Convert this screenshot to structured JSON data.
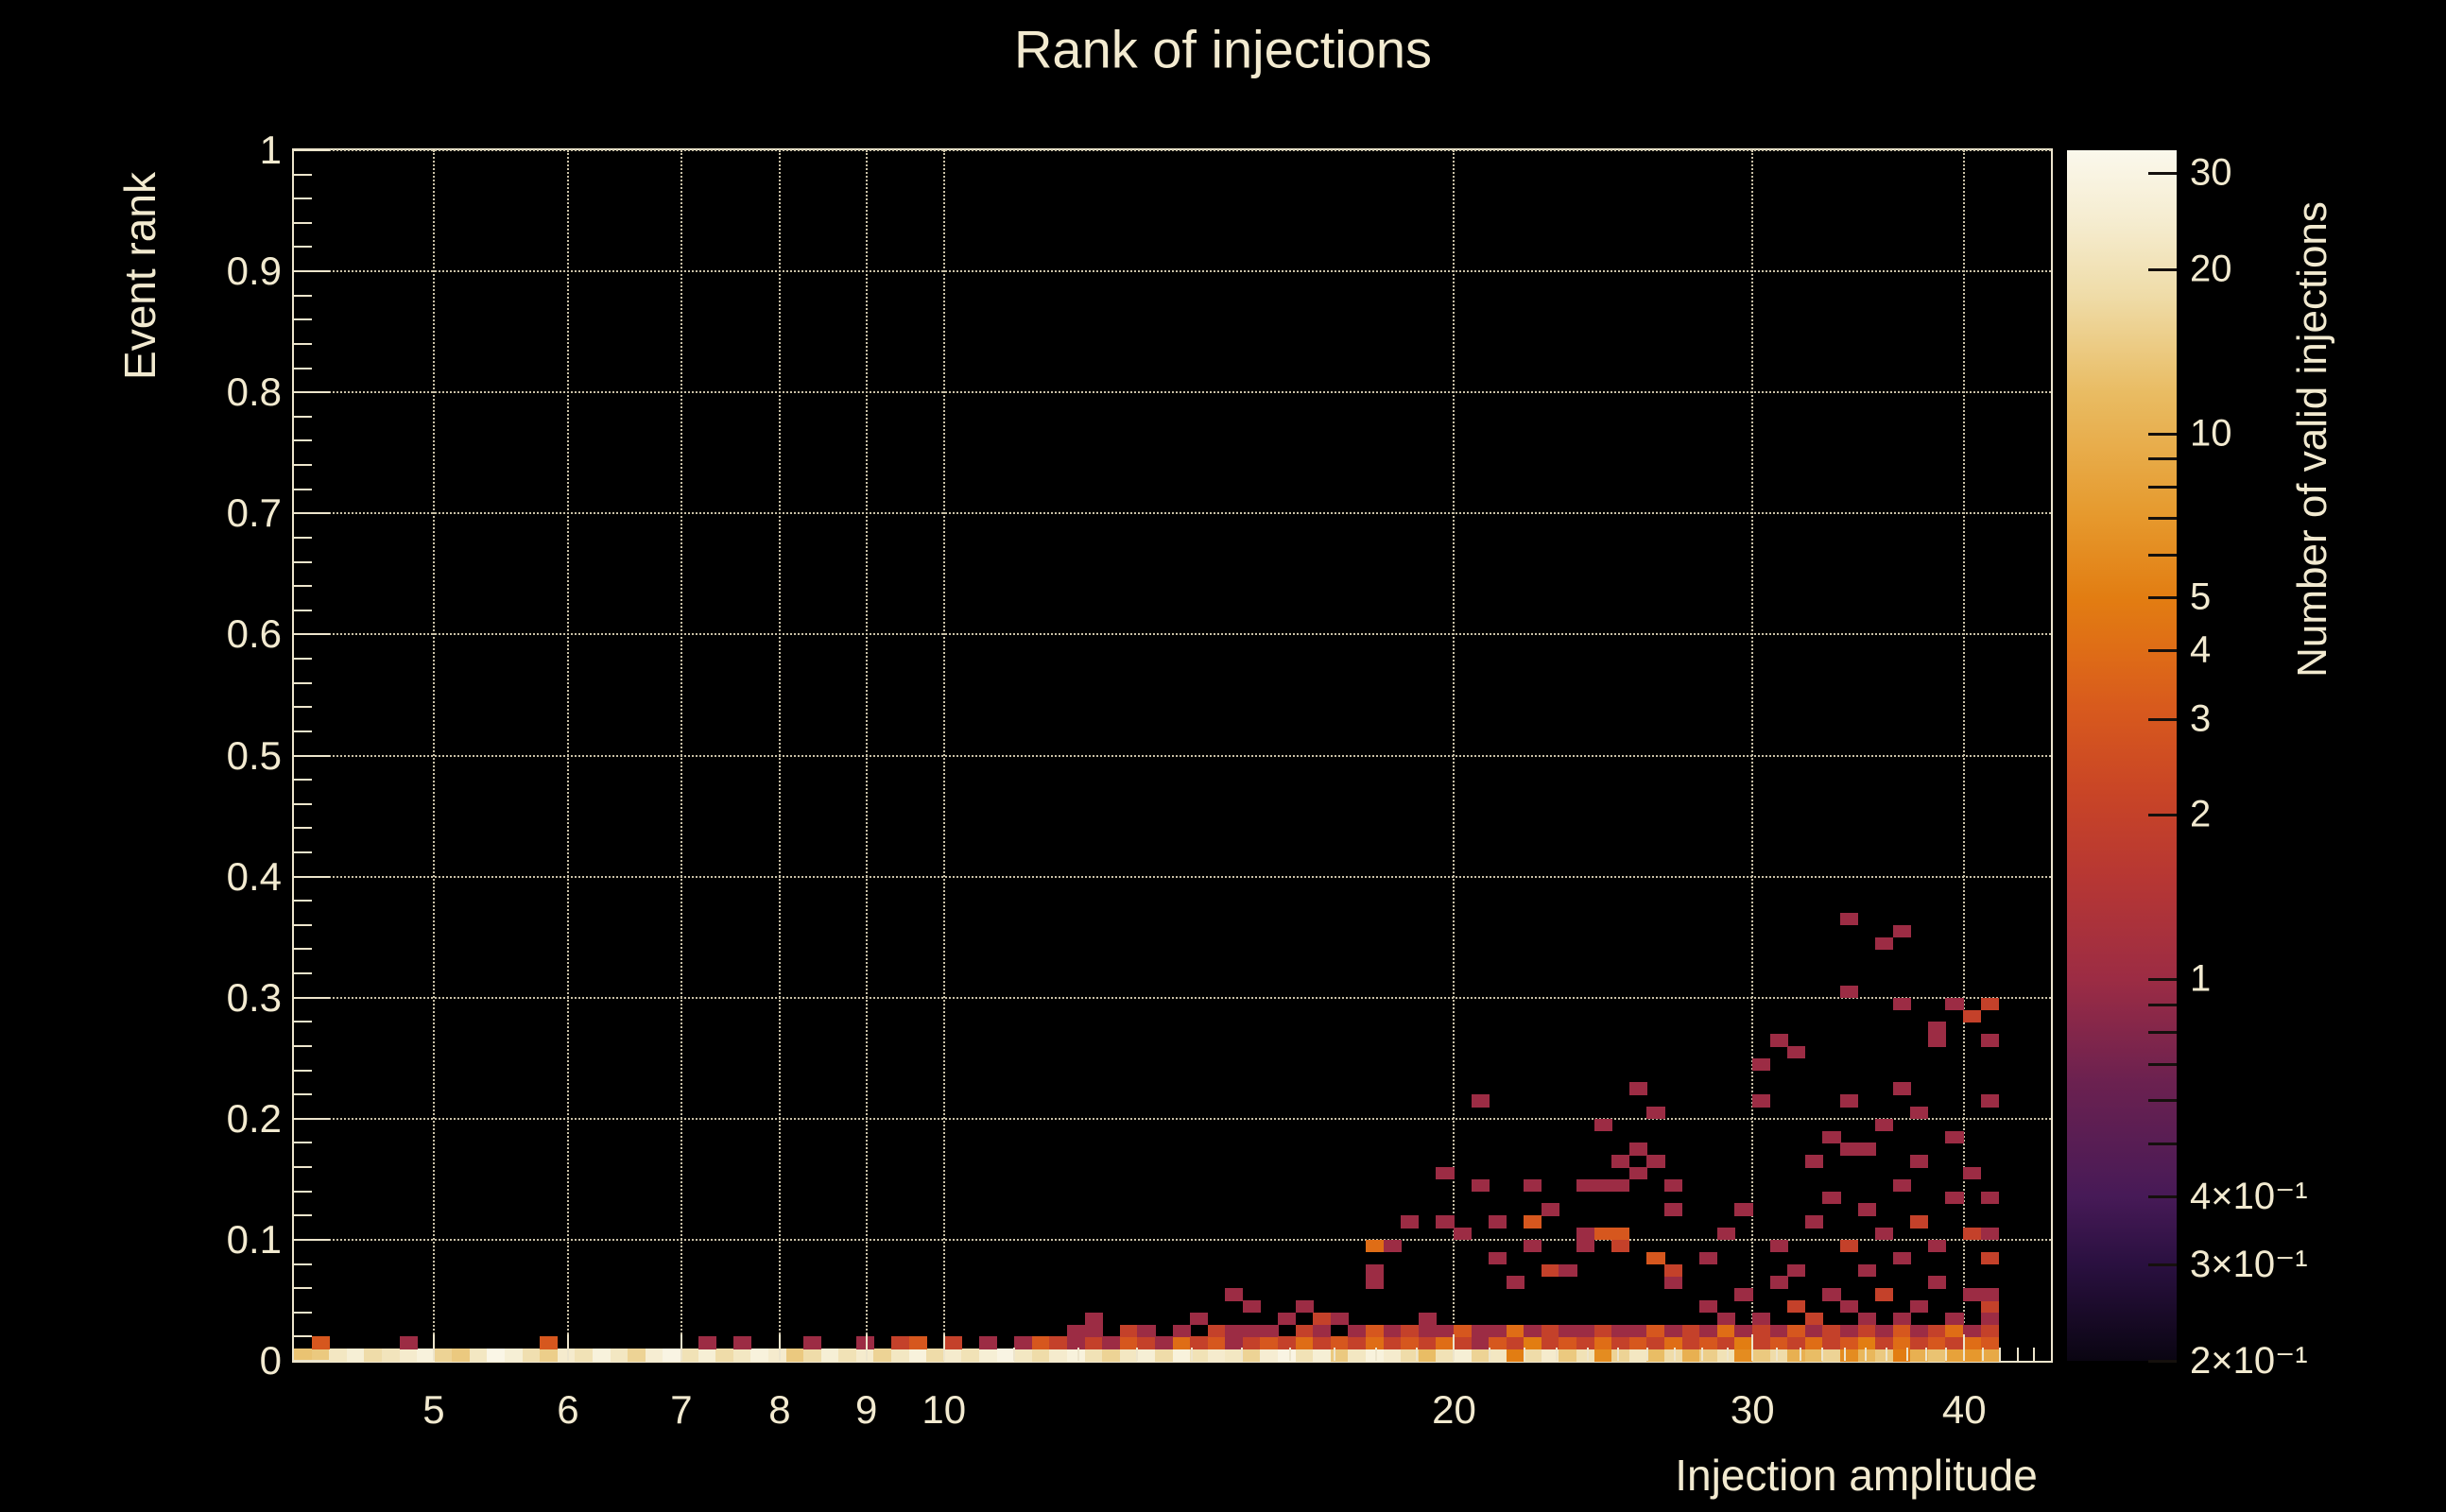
{
  "title": "Rank of injections",
  "colors": {
    "background": "#000000",
    "text": "#F2EAD0",
    "axis": "#EDE5CC",
    "grid": "#C9C0A6",
    "palette_stops": [
      [
        0.0,
        "#0A0512"
      ],
      [
        0.08,
        "#2A1040"
      ],
      [
        0.136,
        "#471A57"
      ],
      [
        0.23,
        "#6B2150"
      ],
      [
        0.315,
        "#9C2C44"
      ],
      [
        0.4,
        "#B73733"
      ],
      [
        0.47,
        "#C94526"
      ],
      [
        0.54,
        "#D85A1D"
      ],
      [
        0.59,
        "#DF6E16"
      ],
      [
        0.63,
        "#E27D12"
      ],
      [
        0.7,
        "#E69A2E"
      ],
      [
        0.8,
        "#E9BC63"
      ],
      [
        0.88,
        "#EFDCA8"
      ],
      [
        0.94,
        "#F5ECCF"
      ],
      [
        1.0,
        "#FBF8EC"
      ]
    ]
  },
  "chart_data": {
    "type": "heatmap",
    "title": "Rank of injections",
    "xlabel": "Injection amplitude",
    "ylabel": "Event rank",
    "zlabel": "Number of valid injections",
    "x_scale": "log",
    "x_range": [
      4.135,
      45.0
    ],
    "x_labeled_ticks": [
      5,
      6,
      7,
      8,
      9,
      10,
      20,
      30,
      40
    ],
    "x_tick_labels": [
      "5",
      "6",
      "7",
      "8",
      "9",
      "10",
      "20",
      "30",
      "40"
    ],
    "y_range": [
      0,
      1
    ],
    "y_tick_step": 0.1,
    "y_tick_labels": [
      "0",
      "0.1",
      "0.2",
      "0.3",
      "0.4",
      "0.5",
      "0.6",
      "0.7",
      "0.8",
      "0.9",
      "1"
    ],
    "grid": "dotted, on labeled ticks both axes",
    "z_scale": "log",
    "z_range": [
      0.2,
      33
    ],
    "z_tick_labels": [
      [
        30,
        "30"
      ],
      [
        20,
        "20"
      ],
      [
        10,
        "10"
      ],
      [
        5,
        "5"
      ],
      [
        4,
        "4"
      ],
      [
        3,
        "3"
      ],
      [
        2,
        "2"
      ],
      [
        1,
        "1"
      ],
      [
        0.4,
        "4×10⁻¹"
      ],
      [
        0.3,
        "3×10⁻¹"
      ],
      [
        0.2,
        "2×10⁻¹"
      ]
    ],
    "n_xbins": 100,
    "n_ybins": 100,
    "note": "bins: xbin i spans 4.135*(45/4.135)^(i/100)..^((i+1)/100); ybin j spans [0.01j,0.01j+0.01); bottom_row_counts[i] = count in ybin 0",
    "bottom_row_counts": [
      13,
      14,
      22,
      26,
      18,
      21,
      24,
      28,
      16,
      14,
      22,
      31,
      26,
      19,
      15,
      24,
      20,
      28,
      22,
      16,
      25,
      30,
      20,
      26,
      18,
      22,
      28,
      24,
      14,
      18,
      26,
      20,
      24,
      16,
      22,
      28,
      18,
      24,
      20,
      26,
      30,
      22,
      18,
      24,
      28,
      20,
      16,
      22,
      26,
      18,
      28,
      20,
      24,
      22,
      16,
      25,
      30,
      20,
      26,
      14,
      22,
      28,
      24,
      18,
      12,
      20,
      26,
      16,
      22,
      5,
      18,
      24,
      14,
      20,
      6,
      16,
      22,
      12,
      18,
      10,
      15,
      20,
      6,
      14,
      18,
      10,
      12,
      16,
      6,
      11,
      14,
      5,
      10,
      13,
      8,
      7,
      9
    ],
    "cells": [
      [
        1,
        1,
        3
      ],
      [
        6,
        1,
        1
      ],
      [
        14,
        1,
        3
      ],
      [
        23,
        1,
        1
      ],
      [
        25,
        1,
        1
      ],
      [
        29,
        1,
        1
      ],
      [
        32,
        1,
        1
      ],
      [
        34,
        1,
        2
      ],
      [
        35,
        1,
        3
      ],
      [
        37,
        1,
        2
      ],
      [
        39,
        1,
        1
      ],
      [
        41,
        1,
        1
      ],
      [
        42,
        1,
        3
      ],
      [
        43,
        1,
        2
      ],
      [
        44,
        1,
        1
      ],
      [
        44,
        2,
        1
      ],
      [
        45,
        1,
        2
      ],
      [
        45,
        2,
        1
      ],
      [
        45,
        3,
        1
      ],
      [
        46,
        1,
        1
      ],
      [
        47,
        1,
        3
      ],
      [
        47,
        2,
        2
      ],
      [
        48,
        1,
        2
      ],
      [
        48,
        2,
        1
      ],
      [
        49,
        1,
        1
      ],
      [
        50,
        1,
        4
      ],
      [
        50,
        2,
        1
      ],
      [
        51,
        1,
        2
      ],
      [
        51,
        3,
        1
      ],
      [
        52,
        1,
        3
      ],
      [
        52,
        2,
        2
      ],
      [
        53,
        1,
        1
      ],
      [
        53,
        2,
        1
      ],
      [
        53,
        5,
        1
      ],
      [
        54,
        1,
        2
      ],
      [
        54,
        2,
        1
      ],
      [
        54,
        4,
        1
      ],
      [
        55,
        1,
        3
      ],
      [
        55,
        2,
        1
      ],
      [
        56,
        1,
        2
      ],
      [
        56,
        3,
        1
      ],
      [
        57,
        1,
        4
      ],
      [
        57,
        2,
        2
      ],
      [
        57,
        4,
        1
      ],
      [
        58,
        1,
        2
      ],
      [
        58,
        2,
        1
      ],
      [
        58,
        3,
        2
      ],
      [
        59,
        1,
        3
      ],
      [
        59,
        3,
        1
      ],
      [
        60,
        1,
        2
      ],
      [
        60,
        2,
        1
      ],
      [
        61,
        1,
        4
      ],
      [
        61,
        2,
        3
      ],
      [
        61,
        6,
        1
      ],
      [
        61,
        7,
        1
      ],
      [
        61,
        9,
        4
      ],
      [
        62,
        1,
        2
      ],
      [
        62,
        2,
        1
      ],
      [
        62,
        9,
        1
      ],
      [
        63,
        1,
        3
      ],
      [
        63,
        2,
        2
      ],
      [
        63,
        11,
        1
      ],
      [
        64,
        1,
        2
      ],
      [
        64,
        2,
        1
      ],
      [
        64,
        3,
        1
      ],
      [
        65,
        1,
        4
      ],
      [
        65,
        2,
        1
      ],
      [
        65,
        11,
        1
      ],
      [
        65,
        15,
        1
      ],
      [
        66,
        1,
        2
      ],
      [
        66,
        2,
        3
      ],
      [
        66,
        10,
        1
      ],
      [
        67,
        1,
        1
      ],
      [
        67,
        2,
        1
      ],
      [
        67,
        14,
        1
      ],
      [
        67,
        21,
        1
      ],
      [
        68,
        1,
        3
      ],
      [
        68,
        2,
        1
      ],
      [
        68,
        8,
        1
      ],
      [
        68,
        11,
        1
      ],
      [
        69,
        1,
        2
      ],
      [
        69,
        2,
        4
      ],
      [
        69,
        6,
        1
      ],
      [
        70,
        1,
        5
      ],
      [
        70,
        2,
        1
      ],
      [
        70,
        9,
        1
      ],
      [
        70,
        11,
        3
      ],
      [
        70,
        14,
        1
      ],
      [
        71,
        1,
        2
      ],
      [
        71,
        2,
        2
      ],
      [
        71,
        7,
        2
      ],
      [
        71,
        12,
        1
      ],
      [
        72,
        1,
        3
      ],
      [
        72,
        2,
        1
      ],
      [
        72,
        7,
        1
      ],
      [
        73,
        1,
        2
      ],
      [
        73,
        2,
        1
      ],
      [
        73,
        9,
        1
      ],
      [
        73,
        10,
        1
      ],
      [
        73,
        14,
        1
      ],
      [
        74,
        1,
        4
      ],
      [
        74,
        2,
        2
      ],
      [
        74,
        10,
        3
      ],
      [
        74,
        14,
        1
      ],
      [
        74,
        19,
        1
      ],
      [
        75,
        1,
        2
      ],
      [
        75,
        2,
        1
      ],
      [
        75,
        9,
        2
      ],
      [
        75,
        10,
        3
      ],
      [
        75,
        14,
        1
      ],
      [
        75,
        16,
        1
      ],
      [
        76,
        1,
        3
      ],
      [
        76,
        2,
        1
      ],
      [
        76,
        15,
        1
      ],
      [
        76,
        17,
        1
      ],
      [
        76,
        22,
        1
      ],
      [
        77,
        1,
        2
      ],
      [
        77,
        2,
        3
      ],
      [
        77,
        8,
        3
      ],
      [
        77,
        16,
        1
      ],
      [
        77,
        20,
        1
      ],
      [
        78,
        1,
        4
      ],
      [
        78,
        2,
        1
      ],
      [
        78,
        6,
        1
      ],
      [
        78,
        7,
        2
      ],
      [
        78,
        12,
        1
      ],
      [
        78,
        14,
        1
      ],
      [
        79,
        1,
        2
      ],
      [
        79,
        2,
        2
      ],
      [
        80,
        1,
        3
      ],
      [
        80,
        2,
        1
      ],
      [
        80,
        4,
        1
      ],
      [
        80,
        8,
        1
      ],
      [
        81,
        1,
        2
      ],
      [
        81,
        2,
        4
      ],
      [
        81,
        3,
        1
      ],
      [
        81,
        10,
        1
      ],
      [
        82,
        1,
        5
      ],
      [
        82,
        2,
        1
      ],
      [
        82,
        5,
        1
      ],
      [
        82,
        12,
        1
      ],
      [
        83,
        1,
        2
      ],
      [
        83,
        2,
        2
      ],
      [
        83,
        3,
        1
      ],
      [
        83,
        21,
        1
      ],
      [
        83,
        24,
        1
      ],
      [
        84,
        1,
        3
      ],
      [
        84,
        2,
        1
      ],
      [
        84,
        6,
        1
      ],
      [
        84,
        9,
        1
      ],
      [
        84,
        26,
        1
      ],
      [
        85,
        1,
        2
      ],
      [
        85,
        2,
        3
      ],
      [
        85,
        4,
        2
      ],
      [
        85,
        7,
        1
      ],
      [
        85,
        25,
        1
      ],
      [
        86,
        1,
        4
      ],
      [
        86,
        2,
        1
      ],
      [
        86,
        3,
        2
      ],
      [
        86,
        11,
        1
      ],
      [
        86,
        16,
        1
      ],
      [
        87,
        1,
        2
      ],
      [
        87,
        2,
        2
      ],
      [
        87,
        5,
        1
      ],
      [
        87,
        13,
        1
      ],
      [
        87,
        18,
        1
      ],
      [
        88,
        1,
        3
      ],
      [
        88,
        2,
        1
      ],
      [
        88,
        4,
        1
      ],
      [
        88,
        9,
        2
      ],
      [
        88,
        17,
        1
      ],
      [
        88,
        21,
        1
      ],
      [
        88,
        30,
        1
      ],
      [
        88,
        36,
        1
      ],
      [
        89,
        1,
        5
      ],
      [
        89,
        2,
        2
      ],
      [
        89,
        3,
        1
      ],
      [
        89,
        7,
        1
      ],
      [
        89,
        12,
        1
      ],
      [
        89,
        17,
        1
      ],
      [
        90,
        1,
        2
      ],
      [
        90,
        2,
        1
      ],
      [
        90,
        5,
        2
      ],
      [
        90,
        10,
        1
      ],
      [
        90,
        19,
        1
      ],
      [
        90,
        34,
        1
      ],
      [
        91,
        1,
        4
      ],
      [
        91,
        2,
        3
      ],
      [
        91,
        3,
        1
      ],
      [
        91,
        8,
        1
      ],
      [
        91,
        14,
        1
      ],
      [
        91,
        22,
        1
      ],
      [
        91,
        29,
        1
      ],
      [
        91,
        35,
        1
      ],
      [
        92,
        1,
        2
      ],
      [
        92,
        2,
        1
      ],
      [
        92,
        4,
        1
      ],
      [
        92,
        11,
        2
      ],
      [
        92,
        16,
        1
      ],
      [
        92,
        20,
        1
      ],
      [
        93,
        1,
        3
      ],
      [
        93,
        2,
        2
      ],
      [
        93,
        6,
        1
      ],
      [
        93,
        9,
        1
      ],
      [
        93,
        26,
        1
      ],
      [
        93,
        27,
        1
      ],
      [
        94,
        1,
        2
      ],
      [
        94,
        2,
        4
      ],
      [
        94,
        3,
        1
      ],
      [
        94,
        13,
        1
      ],
      [
        94,
        18,
        1
      ],
      [
        94,
        29,
        1
      ],
      [
        95,
        1,
        4
      ],
      [
        95,
        2,
        1
      ],
      [
        95,
        5,
        1
      ],
      [
        95,
        10,
        2
      ],
      [
        95,
        15,
        1
      ],
      [
        95,
        28,
        2
      ],
      [
        96,
        1,
        3
      ],
      [
        96,
        2,
        2
      ],
      [
        96,
        3,
        1
      ],
      [
        96,
        4,
        2
      ],
      [
        96,
        5,
        1
      ],
      [
        96,
        8,
        2
      ],
      [
        96,
        10,
        1
      ],
      [
        96,
        13,
        1
      ],
      [
        96,
        21,
        1
      ],
      [
        96,
        26,
        1
      ],
      [
        96,
        29,
        2
      ]
    ]
  }
}
